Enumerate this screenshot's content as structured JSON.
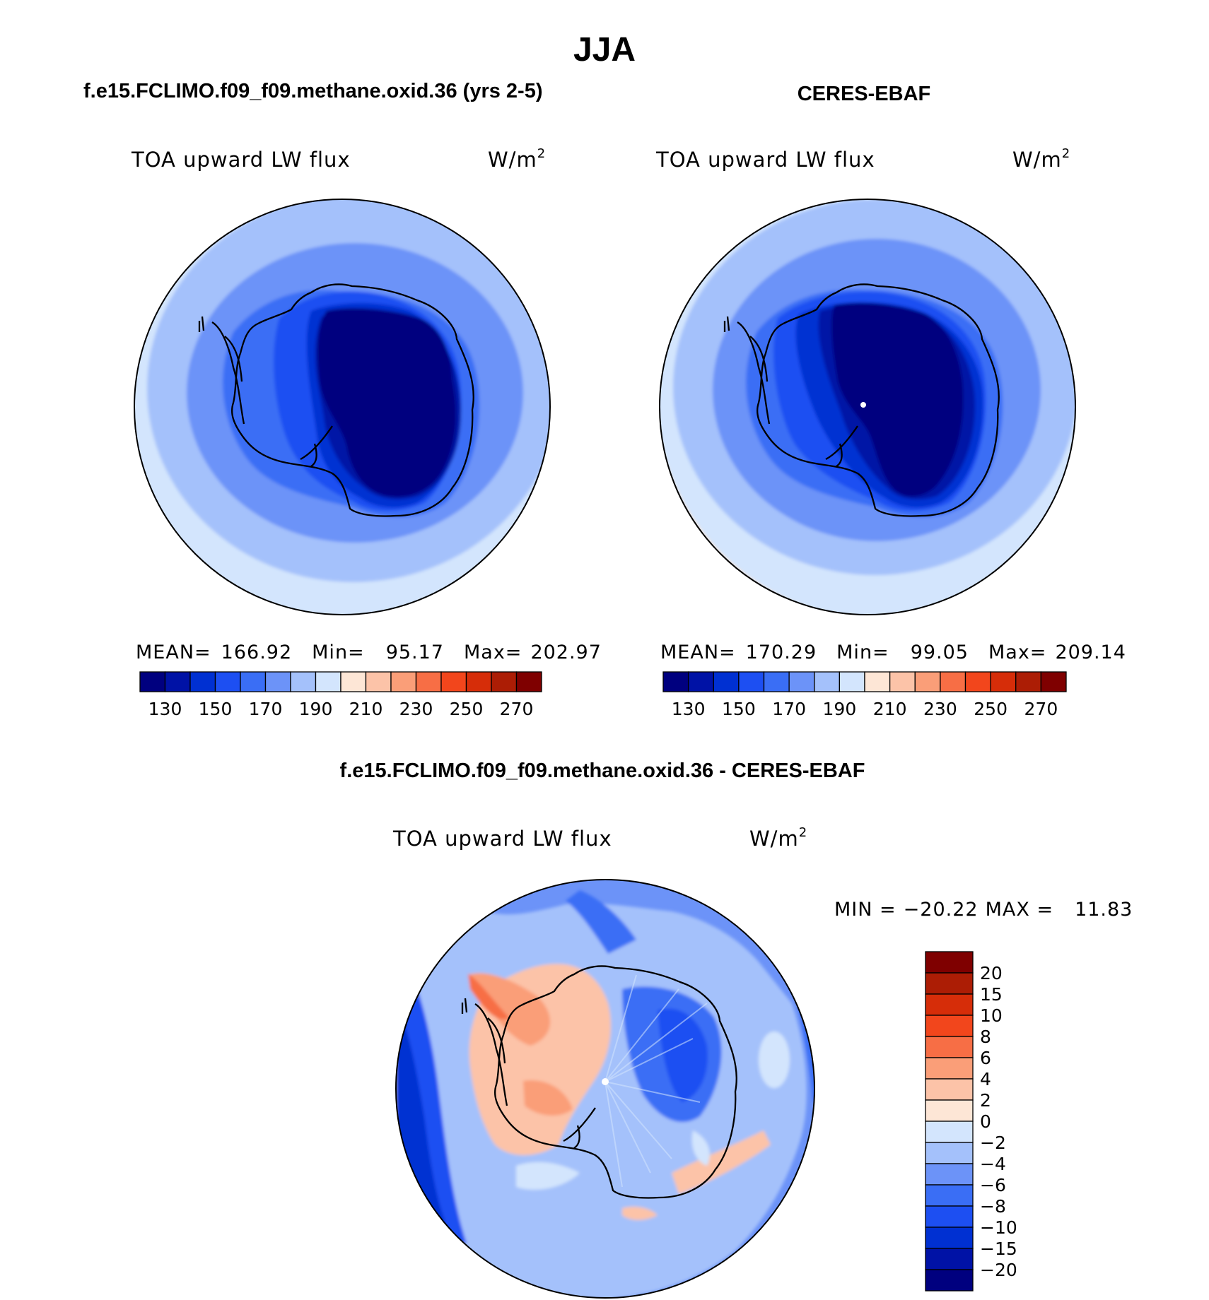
{
  "main_title": "JJA",
  "panels": [
    {
      "heading": "f.e15.FCLIMO.f09_f09.methane.oxid.36 (yrs 2-5)",
      "variable": "TOA upward LW flux",
      "units_base": "W/m",
      "units_exp": "2",
      "stats": {
        "mean_label": "MEAN=",
        "mean": "166.92",
        "min_label": "Min=",
        "min": "95.17",
        "max_label": "Max=",
        "max": "202.97"
      }
    },
    {
      "heading": "CERES-EBAF",
      "variable": "TOA upward LW flux",
      "units_base": "W/m",
      "units_exp": "2",
      "stats": {
        "mean_label": "MEAN=",
        "mean": "170.29",
        "min_label": "Min=",
        "min": "99.05",
        "max_label": "Max=",
        "max": "209.14"
      }
    },
    {
      "heading": "f.e15.FCLIMO.f09_f09.methane.oxid.36 - CERES-EBAF",
      "variable": "TOA upward LW flux",
      "units_base": "W/m",
      "units_exp": "2",
      "stats": {
        "min_label": "MIN =",
        "min": "−20.22",
        "max_label": "MAX =",
        "max": "11.83"
      }
    }
  ],
  "colorbars": {
    "absolute": {
      "colors": [
        "#00007f",
        "#0012a6",
        "#0030d2",
        "#1d4ff2",
        "#3a6ef5",
        "#6c93f8",
        "#a4c1fb",
        "#d3e5fd",
        "#fde6d6",
        "#fcc3a8",
        "#fa9e78",
        "#f76e45",
        "#f2461c",
        "#d62d09",
        "#ac1d05",
        "#7f0000"
      ],
      "tick_labels": [
        "130",
        "150",
        "170",
        "190",
        "210",
        "230",
        "250",
        "270"
      ]
    },
    "difference": {
      "colors": [
        "#00007f",
        "#0012a6",
        "#0030d2",
        "#1d4ff2",
        "#3a6ef5",
        "#6c93f8",
        "#a4c1fb",
        "#d3e5fd",
        "#fde6d6",
        "#fcc3a8",
        "#fa9e78",
        "#f76e45",
        "#f2461c",
        "#d62d09",
        "#ac1d05",
        "#7f0000"
      ],
      "tick_labels": [
        "20",
        "15",
        "10",
        "8",
        "6",
        "4",
        "2",
        "0",
        "−2",
        "−4",
        "−6",
        "−8",
        "−10",
        "−15",
        "−20"
      ]
    }
  },
  "chart_data": [
    {
      "type": "heatmap",
      "projection": "south-polar stereographic",
      "title": "f.e15.FCLIMO.f09_f09.methane.oxid.36 (yrs 2-5)",
      "variable": "TOA upward LW flux",
      "units": "W/m2",
      "mean": 166.92,
      "min": 95.17,
      "max": 202.97,
      "contour_levels": [
        120,
        130,
        140,
        150,
        160,
        170,
        180,
        190,
        200,
        210,
        220,
        230,
        240,
        250,
        260,
        270,
        280
      ]
    },
    {
      "type": "heatmap",
      "projection": "south-polar stereographic",
      "title": "CERES-EBAF",
      "variable": "TOA upward LW flux",
      "units": "W/m2",
      "mean": 170.29,
      "min": 99.05,
      "max": 209.14,
      "contour_levels": [
        120,
        130,
        140,
        150,
        160,
        170,
        180,
        190,
        200,
        210,
        220,
        230,
        240,
        250,
        260,
        270,
        280
      ]
    },
    {
      "type": "heatmap",
      "projection": "south-polar stereographic",
      "title": "f.e15.FCLIMO.f09_f09.methane.oxid.36 - CERES-EBAF",
      "variable": "TOA upward LW flux",
      "units": "W/m2",
      "min": -20.22,
      "max": 11.83,
      "contour_levels": [
        -20,
        -15,
        -10,
        -8,
        -6,
        -4,
        -2,
        0,
        2,
        4,
        6,
        8,
        10,
        15,
        20
      ]
    }
  ]
}
